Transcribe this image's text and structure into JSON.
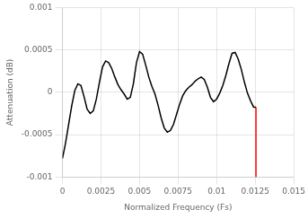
{
  "chart_data": {
    "type": "line",
    "xlabel": "Normalized Frequency (Fs)",
    "ylabel": "Attenuation (dB)",
    "xlim": [
      0,
      0.015
    ],
    "ylim": [
      -0.001,
      0.001
    ],
    "xticks": [
      0,
      0.0025,
      0.005,
      0.0075,
      0.01,
      0.0125,
      0.015
    ],
    "yticks": [
      -0.001,
      -0.0005,
      0,
      0.0005,
      0.001
    ],
    "grid": true,
    "series": [
      {
        "color": "#000000",
        "x": [
          0.0,
          0.0002,
          0.0004,
          0.0006,
          0.0008,
          0.001,
          0.0012,
          0.0014,
          0.0016,
          0.0018,
          0.002,
          0.0022,
          0.0024,
          0.0026,
          0.0028,
          0.003,
          0.0032,
          0.0034,
          0.0036,
          0.0038,
          0.004,
          0.0042,
          0.0044,
          0.0046,
          0.0048,
          0.005,
          0.0052,
          0.0054,
          0.0056,
          0.0058,
          0.006,
          0.0062,
          0.0064,
          0.0066,
          0.0068,
          0.007,
          0.0072,
          0.0074,
          0.0076,
          0.0078,
          0.008,
          0.0082,
          0.0084,
          0.0086,
          0.0088,
          0.009,
          0.0092,
          0.0094,
          0.0096,
          0.0098,
          0.01,
          0.0102,
          0.0104,
          0.0106,
          0.0108,
          0.011,
          0.0112,
          0.0114,
          0.0116,
          0.0118,
          0.012,
          0.0122,
          0.0124,
          0.01255
        ],
        "values": [
          -0.00078,
          -0.0006,
          -0.00038,
          -0.00016,
          2e-05,
          0.0001,
          8e-05,
          -5e-05,
          -0.0002,
          -0.00025,
          -0.00022,
          -8e-05,
          0.00012,
          0.0003,
          0.00037,
          0.00035,
          0.00028,
          0.00018,
          9e-05,
          3e-05,
          -2e-05,
          -8e-05,
          -6e-05,
          0.0001,
          0.00035,
          0.00048,
          0.00045,
          0.00032,
          0.00018,
          7e-05,
          -2e-05,
          -0.00015,
          -0.0003,
          -0.00042,
          -0.00047,
          -0.00045,
          -0.00038,
          -0.00026,
          -0.00014,
          -4e-05,
          2e-05,
          6e-05,
          9e-05,
          0.00013,
          0.00016,
          0.00018,
          0.00015,
          6e-05,
          -6e-05,
          -0.00011,
          -8e-05,
          -1e-05,
          8e-05,
          0.0002,
          0.00034,
          0.00046,
          0.00047,
          0.00039,
          0.00027,
          0.00012,
          -1e-05,
          -0.0001,
          -0.000175,
          -0.000175
        ]
      },
      {
        "color": "#FF0000",
        "x": [
          0.01255,
          0.01255
        ],
        "values": [
          -0.000175,
          -0.001
        ]
      }
    ]
  }
}
